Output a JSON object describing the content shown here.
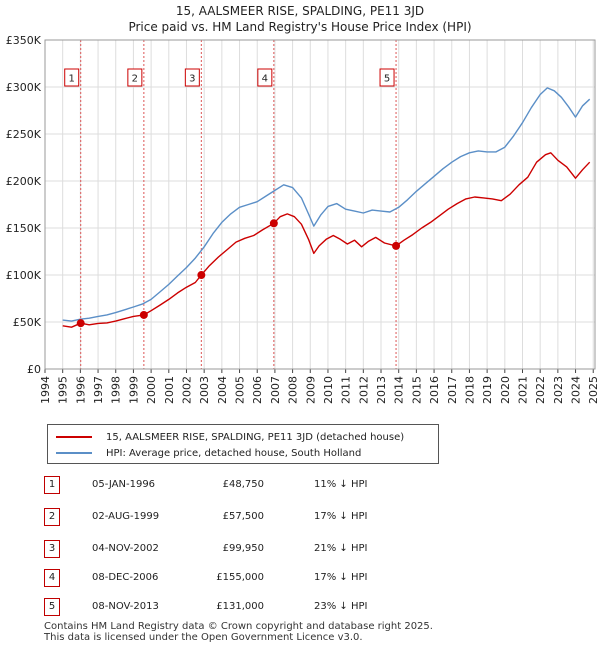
{
  "header": {
    "title": "15, AALSMEER RISE, SPALDING, PE11 3JD",
    "subtitle": "Price paid vs. HM Land Registry's House Price Index (HPI)"
  },
  "chart_data": {
    "type": "line",
    "ylim": [
      0,
      350000
    ],
    "xlim": [
      1994.0,
      2025.1
    ],
    "y_ticks": [
      0,
      50000,
      100000,
      150000,
      200000,
      250000,
      300000,
      350000
    ],
    "y_tick_labels": [
      "£0",
      "£50K",
      "£100K",
      "£150K",
      "£200K",
      "£250K",
      "£300K",
      "£350K"
    ],
    "x_ticks": [
      1994,
      1995,
      1996,
      1997,
      1998,
      1999,
      2000,
      2001,
      2002,
      2003,
      2004,
      2005,
      2006,
      2007,
      2008,
      2009,
      2010,
      2011,
      2012,
      2013,
      2014,
      2015,
      2016,
      2017,
      2018,
      2019,
      2020,
      2021,
      2022,
      2023,
      2024,
      2025
    ],
    "series": [
      {
        "name": "15, AALSMEER RISE, SPALDING, PE11 3JD (detached house)",
        "color": "#cc0000",
        "points": [
          [
            1995.0,
            46000
          ],
          [
            1995.5,
            44500
          ],
          [
            1996.02,
            48750
          ],
          [
            1996.5,
            47000
          ],
          [
            1997.0,
            48500
          ],
          [
            1997.5,
            49000
          ],
          [
            1998.0,
            51000
          ],
          [
            1998.5,
            53500
          ],
          [
            1999.0,
            56000
          ],
          [
            1999.59,
            57500
          ],
          [
            2000.0,
            62000
          ],
          [
            2000.5,
            68000
          ],
          [
            2001.0,
            74000
          ],
          [
            2001.5,
            81000
          ],
          [
            2002.0,
            87000
          ],
          [
            2002.5,
            92000
          ],
          [
            2002.84,
            99950
          ],
          [
            2003.3,
            110000
          ],
          [
            2003.8,
            119000
          ],
          [
            2004.3,
            127000
          ],
          [
            2004.8,
            135000
          ],
          [
            2005.3,
            139000
          ],
          [
            2005.8,
            142000
          ],
          [
            2006.3,
            148000
          ],
          [
            2006.94,
            155000
          ],
          [
            2007.3,
            162000
          ],
          [
            2007.7,
            165000
          ],
          [
            2008.1,
            162000
          ],
          [
            2008.5,
            154000
          ],
          [
            2008.9,
            138000
          ],
          [
            2009.2,
            123000
          ],
          [
            2009.5,
            131000
          ],
          [
            2009.9,
            138000
          ],
          [
            2010.3,
            142000
          ],
          [
            2010.7,
            138000
          ],
          [
            2011.1,
            133000
          ],
          [
            2011.5,
            137000
          ],
          [
            2011.9,
            130000
          ],
          [
            2012.3,
            136000
          ],
          [
            2012.7,
            140000
          ],
          [
            2013.2,
            134000
          ],
          [
            2013.85,
            131000
          ],
          [
            2014.3,
            137000
          ],
          [
            2014.8,
            143000
          ],
          [
            2015.3,
            150000
          ],
          [
            2015.8,
            156000
          ],
          [
            2016.3,
            163000
          ],
          [
            2016.8,
            170000
          ],
          [
            2017.3,
            176000
          ],
          [
            2017.8,
            181000
          ],
          [
            2018.3,
            183000
          ],
          [
            2018.8,
            182000
          ],
          [
            2019.3,
            181000
          ],
          [
            2019.8,
            179000
          ],
          [
            2020.3,
            186000
          ],
          [
            2020.8,
            196000
          ],
          [
            2021.3,
            204000
          ],
          [
            2021.8,
            220000
          ],
          [
            2022.3,
            228000
          ],
          [
            2022.6,
            230000
          ],
          [
            2023.0,
            222000
          ],
          [
            2023.5,
            215000
          ],
          [
            2024.0,
            203000
          ],
          [
            2024.4,
            212000
          ],
          [
            2024.8,
            220000
          ]
        ]
      },
      {
        "name": "HPI: Average price, detached house, South Holland",
        "color": "#5b8fc7",
        "points": [
          [
            1995.0,
            52000
          ],
          [
            1995.5,
            51000
          ],
          [
            1996.0,
            53000
          ],
          [
            1996.5,
            54000
          ],
          [
            1997.0,
            56000
          ],
          [
            1997.5,
            57500
          ],
          [
            1998.0,
            60000
          ],
          [
            1998.5,
            63000
          ],
          [
            1999.0,
            66000
          ],
          [
            1999.5,
            69000
          ],
          [
            2000.0,
            74000
          ],
          [
            2000.5,
            82000
          ],
          [
            2001.0,
            90000
          ],
          [
            2001.5,
            99000
          ],
          [
            2002.0,
            108000
          ],
          [
            2002.5,
            118000
          ],
          [
            2003.0,
            130000
          ],
          [
            2003.5,
            144000
          ],
          [
            2004.0,
            156000
          ],
          [
            2004.5,
            165000
          ],
          [
            2005.0,
            172000
          ],
          [
            2005.5,
            175000
          ],
          [
            2006.0,
            178000
          ],
          [
            2006.5,
            184000
          ],
          [
            2007.0,
            190000
          ],
          [
            2007.5,
            196000
          ],
          [
            2008.0,
            193000
          ],
          [
            2008.5,
            182000
          ],
          [
            2008.9,
            165000
          ],
          [
            2009.2,
            152000
          ],
          [
            2009.6,
            164000
          ],
          [
            2010.0,
            173000
          ],
          [
            2010.5,
            176000
          ],
          [
            2011.0,
            170000
          ],
          [
            2011.5,
            168000
          ],
          [
            2012.0,
            166000
          ],
          [
            2012.5,
            169000
          ],
          [
            2013.0,
            168000
          ],
          [
            2013.5,
            167000
          ],
          [
            2014.0,
            172000
          ],
          [
            2014.5,
            180000
          ],
          [
            2015.0,
            189000
          ],
          [
            2015.5,
            197000
          ],
          [
            2016.0,
            205000
          ],
          [
            2016.5,
            213000
          ],
          [
            2017.0,
            220000
          ],
          [
            2017.5,
            226000
          ],
          [
            2018.0,
            230000
          ],
          [
            2018.5,
            232000
          ],
          [
            2019.0,
            231000
          ],
          [
            2019.5,
            231000
          ],
          [
            2020.0,
            236000
          ],
          [
            2020.5,
            248000
          ],
          [
            2021.0,
            262000
          ],
          [
            2021.5,
            278000
          ],
          [
            2022.0,
            292000
          ],
          [
            2022.4,
            299000
          ],
          [
            2022.8,
            296000
          ],
          [
            2023.2,
            289000
          ],
          [
            2023.6,
            279000
          ],
          [
            2024.0,
            268000
          ],
          [
            2024.4,
            280000
          ],
          [
            2024.8,
            287000
          ]
        ]
      }
    ],
    "sales": [
      {
        "label": "1",
        "x": 1996.02,
        "price": 48750
      },
      {
        "label": "2",
        "x": 1999.59,
        "price": 57500
      },
      {
        "label": "3",
        "x": 2002.84,
        "price": 99950
      },
      {
        "label": "4",
        "x": 2006.94,
        "price": 155000
      },
      {
        "label": "5",
        "x": 2013.85,
        "price": 131000
      }
    ]
  },
  "legend": {
    "property": "15, AALSMEER RISE, SPALDING, PE11 3JD (detached house)",
    "hpi": "HPI: Average price, detached house, South Holland",
    "property_color": "#cc0000",
    "hpi_color": "#5b8fc7"
  },
  "transactions": [
    {
      "num": "1",
      "date": "05-JAN-1996",
      "price": "£48,750",
      "hpi": "11% ↓ HPI"
    },
    {
      "num": "2",
      "date": "02-AUG-1999",
      "price": "£57,500",
      "hpi": "17% ↓ HPI"
    },
    {
      "num": "3",
      "date": "04-NOV-2002",
      "price": "£99,950",
      "hpi": "21% ↓ HPI"
    },
    {
      "num": "4",
      "date": "08-DEC-2006",
      "price": "£155,000",
      "hpi": "17% ↓ HPI"
    },
    {
      "num": "5",
      "date": "08-NOV-2013",
      "price": "£131,000",
      "hpi": "23% ↓ HPI"
    }
  ],
  "footer": {
    "line1": "Contains HM Land Registry data © Crown copyright and database right 2025.",
    "line2": "This data is licensed under the Open Government Licence v3.0."
  }
}
